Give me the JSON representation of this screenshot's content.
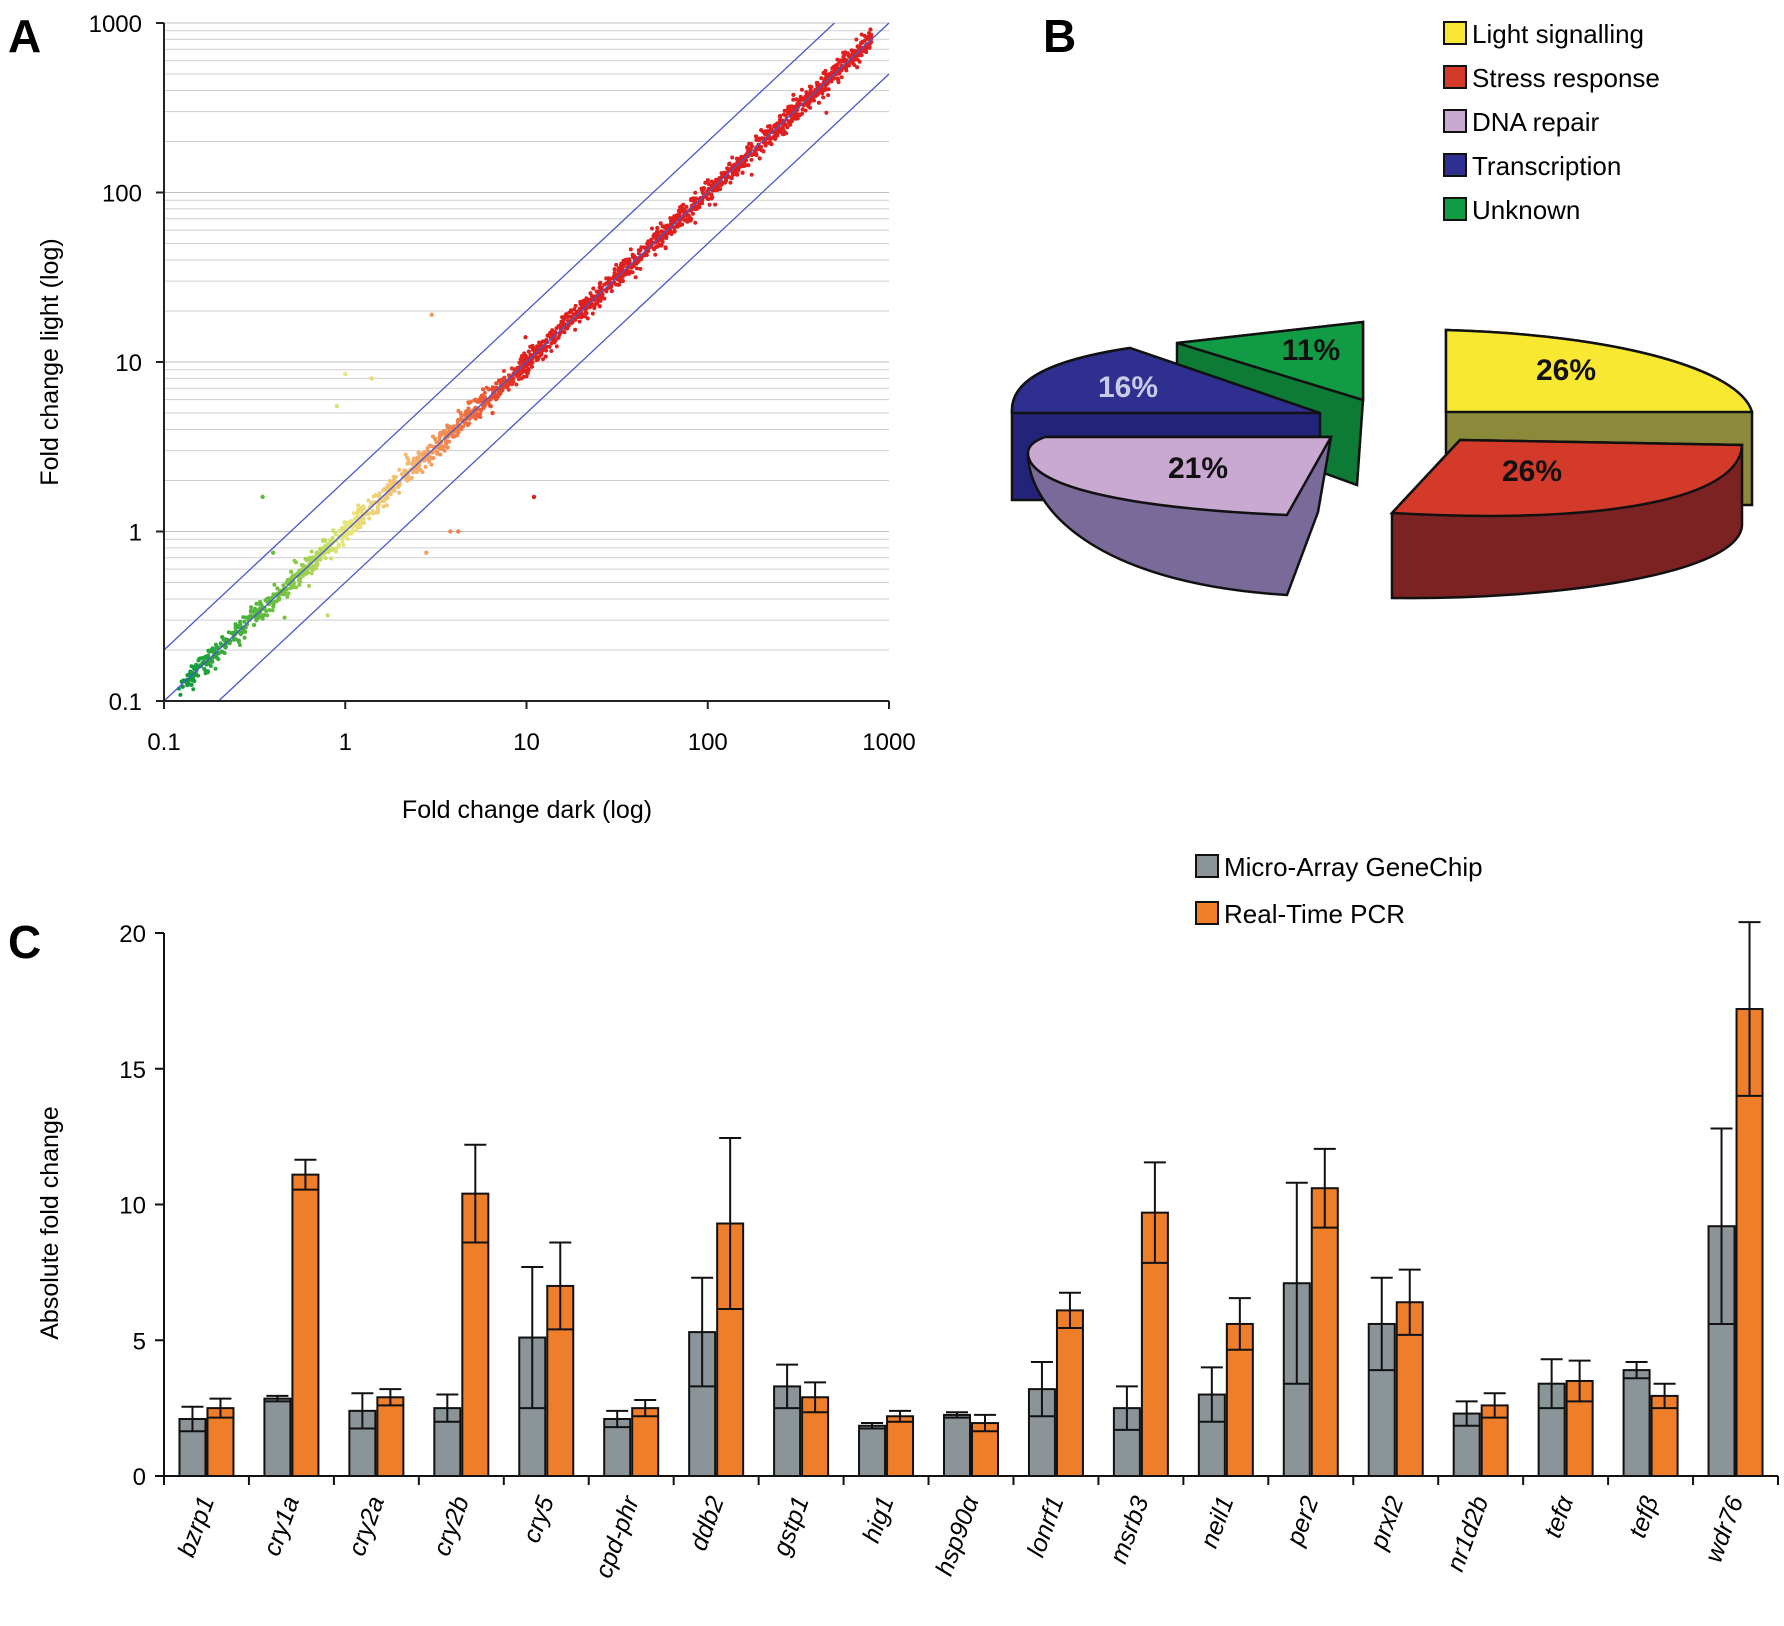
{
  "panels": {
    "a": {
      "letter": "A"
    },
    "b": {
      "letter": "B"
    },
    "c": {
      "letter": "C"
    }
  },
  "chart_data": [
    {
      "type": "scatter",
      "panel": "A",
      "xlabel": "Fold change dark (log)",
      "ylabel": "Fold change light (log)",
      "xscale": "log",
      "yscale": "log",
      "xlim": [
        0.1,
        1000
      ],
      "ylim": [
        0.1,
        1000
      ],
      "x_ticks": [
        "0.1",
        "1",
        "10",
        "100",
        "1000"
      ],
      "y_ticks": [
        "0.1",
        "1",
        "10",
        "100",
        "1000"
      ],
      "grid": "horizontal minor gridlines",
      "reference_lines": [
        {
          "ratio": 2
        },
        {
          "ratio": 1
        },
        {
          "ratio": 0.5
        }
      ],
      "point_color_scale": [
        "#0a9a3c",
        "#72c23a",
        "#e8e87a",
        "#f5b772",
        "#ee6a3c",
        "#e01f1f"
      ],
      "points_description_values": {
        "cloud_x_range": [
          0.12,
          800
        ],
        "outliers": [
          {
            "x": 3.0,
            "y": 19
          },
          {
            "x": 1.0,
            "y": 8.5
          },
          {
            "x": 1.4,
            "y": 8.0
          },
          {
            "x": 0.9,
            "y": 5.5
          },
          {
            "x": 0.35,
            "y": 1.6
          },
          {
            "x": 4.2,
            "y": 1.0
          },
          {
            "x": 3.8,
            "y": 1.0
          },
          {
            "x": 2.8,
            "y": 0.75
          },
          {
            "x": 6.5,
            "y": 5.0
          },
          {
            "x": 11,
            "y": 1.6
          },
          {
            "x": 0.8,
            "y": 0.32
          },
          {
            "x": 0.4,
            "y": 0.75
          }
        ]
      }
    },
    {
      "type": "pie",
      "panel": "B",
      "style": "3d-exploded",
      "legend_position": "top-right",
      "slices": [
        {
          "label": "Light signalling",
          "value": 26,
          "text": "26%",
          "color": "#f8e831"
        },
        {
          "label": "Stress response",
          "value": 26,
          "text": "26%",
          "color": "#d43a2a"
        },
        {
          "label": "DNA repair",
          "value": 21,
          "text": "21%",
          "color": "#c9a8d2"
        },
        {
          "label": "Transcription",
          "value": 16,
          "text": "16%",
          "color": "#2e2f8f"
        },
        {
          "label": "Unknown",
          "value": 11,
          "text": "11%",
          "color": "#129b45"
        }
      ]
    },
    {
      "type": "bar",
      "panel": "C",
      "ylabel": "Absolute fold change",
      "ylim": [
        0,
        20
      ],
      "y_ticks": [
        "0",
        "5",
        "10",
        "15",
        "20"
      ],
      "legend_position": "top-right",
      "categories": [
        "bzrp1",
        "cry1a",
        "cry2a",
        "cry2b",
        "cry5",
        "cpd-phr",
        "ddb2",
        "gstp1",
        "hig1",
        "hsp90α",
        "lonrf1",
        "msrb3",
        "neil1",
        "per2",
        "prxl2",
        "nr1d2b",
        "tefα",
        "tefβ",
        "wdr76"
      ],
      "series": [
        {
          "name": "Micro-Array GeneChip",
          "color": "#8a9499",
          "values": [
            2.1,
            2.85,
            2.4,
            2.5,
            5.1,
            2.1,
            5.3,
            3.3,
            1.85,
            2.25,
            3.2,
            2.5,
            3.0,
            7.1,
            5.6,
            2.3,
            3.4,
            3.9,
            9.2
          ],
          "errors": [
            0.45,
            0.1,
            0.65,
            0.5,
            2.6,
            0.3,
            2.0,
            0.8,
            0.1,
            0.1,
            1.0,
            0.8,
            1.0,
            3.7,
            1.7,
            0.45,
            0.9,
            0.3,
            3.6
          ]
        },
        {
          "name": "Real-Time PCR",
          "color": "#ef7e2a",
          "values": [
            2.5,
            11.1,
            2.9,
            10.4,
            7.0,
            2.5,
            9.3,
            2.9,
            2.2,
            1.95,
            6.1,
            9.7,
            5.6,
            10.6,
            6.4,
            2.6,
            3.5,
            2.95,
            17.2
          ],
          "errors": [
            0.35,
            0.55,
            0.3,
            1.8,
            1.6,
            0.3,
            3.15,
            0.55,
            0.2,
            0.3,
            0.65,
            1.85,
            0.95,
            1.45,
            1.2,
            0.45,
            0.75,
            0.45,
            3.2
          ]
        }
      ]
    }
  ]
}
